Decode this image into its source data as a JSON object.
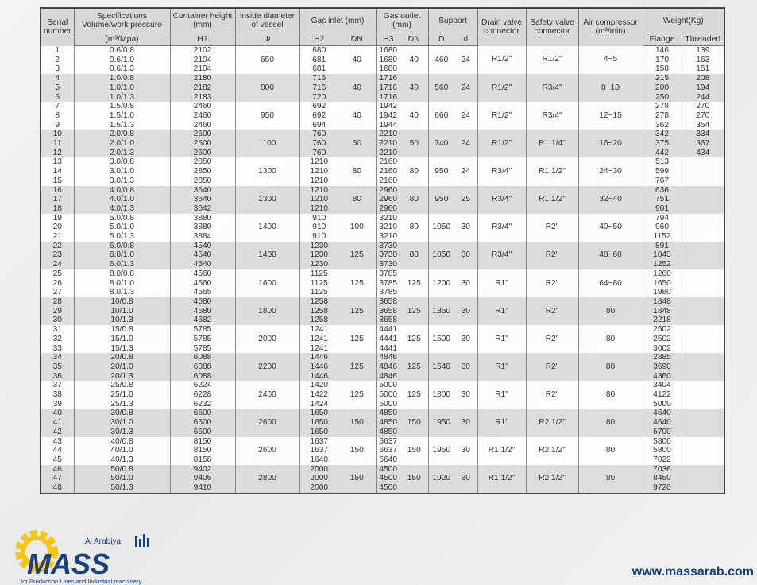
{
  "header": {
    "serial": "Serial number",
    "spec": "Specifications Volume/work pressure",
    "spec_unit": "(m³/Mpa)",
    "container_height": "Container height (mm)",
    "h1": "H1",
    "inside_diameter": "inside diameter of vessel",
    "phi": "Φ",
    "gas_inlet": "Gas inlet (mm)",
    "h2": "H2",
    "dn_in": "DN",
    "gas_outlet": "Gas outlet (mm)",
    "h3": "H3",
    "dn_out": "DN",
    "support": "Support",
    "support_D": "D",
    "support_d": "d",
    "drain": "Drain valve connector",
    "safety": "Safety valve connector",
    "air": "Air compressor (m³/min)",
    "weight": "Weight(Kg)",
    "flange": "Flange",
    "threaded": "Threaded"
  },
  "groups": [
    {
      "phi": "650",
      "dn_in": "40",
      "dn_out": "40",
      "D": "460",
      "d": "24",
      "drain": "R1/2\"",
      "safety": "R1/2\"",
      "air": "4~5",
      "rows": [
        [
          "1",
          "0.6/0.8",
          "2102",
          "680",
          "1680",
          "146",
          "139"
        ],
        [
          "2",
          "0.6/1.0",
          "2104",
          "681",
          "1680",
          "170",
          "163"
        ],
        [
          "3",
          "0.6/1.3",
          "2104",
          "681",
          "1680",
          "158",
          "151"
        ]
      ]
    },
    {
      "phi": "800",
      "dn_in": "40",
      "dn_out": "40",
      "D": "560",
      "d": "24",
      "drain": "R1/2\"",
      "safety": "R3/4\"",
      "air": "8~10",
      "rows": [
        [
          "4",
          "1.0/0.8",
          "2180",
          "716",
          "1716",
          "215",
          "208"
        ],
        [
          "5",
          "1.0/1.0",
          "2182",
          "716",
          "1716",
          "200",
          "194"
        ],
        [
          "6",
          "1.0/1.3",
          "2183",
          "720",
          "1716",
          "250",
          "244"
        ]
      ]
    },
    {
      "phi": "950",
      "dn_in": "40",
      "dn_out": "40",
      "D": "660",
      "d": "24",
      "drain": "R1/2\"",
      "safety": "R3/4\"",
      "air": "12~15",
      "rows": [
        [
          "7",
          "1.5/0.8",
          "2460",
          "692",
          "1942",
          "278",
          "270"
        ],
        [
          "8",
          "1.5/1.0",
          "2460",
          "692",
          "1942",
          "278",
          "270"
        ],
        [
          "9",
          "1.5/1.3",
          "2460",
          "694",
          "1944",
          "362",
          "354"
        ]
      ]
    },
    {
      "phi": "1100",
      "dn_in": "50",
      "dn_out": "50",
      "D": "740",
      "d": "24",
      "drain": "R1/2\"",
      "safety": "R1 1/4\"",
      "air": "16~20",
      "rows": [
        [
          "10",
          "2.0/0.8",
          "2600",
          "760",
          "2210",
          "342",
          "334"
        ],
        [
          "11",
          "2.0/1.0",
          "2600",
          "760",
          "2210",
          "375",
          "367"
        ],
        [
          "12",
          "2.0/1.3",
          "2600",
          "760",
          "2210",
          "442",
          "434"
        ]
      ]
    },
    {
      "phi": "1300",
      "dn_in": "80",
      "dn_out": "80",
      "D": "950",
      "d": "24",
      "drain": "R3/4\"",
      "safety": "R1 1/2\"",
      "air": "24~30",
      "rows": [
        [
          "13",
          "3.0/0.8",
          "2850",
          "1210",
          "2160",
          "513",
          ""
        ],
        [
          "14",
          "3.0/1.0",
          "2850",
          "1210",
          "2160",
          "599",
          ""
        ],
        [
          "15",
          "3.0/1.3",
          "2850",
          "1210",
          "2160",
          "767",
          ""
        ]
      ]
    },
    {
      "phi": "1300",
      "dn_in": "80",
      "dn_out": "80",
      "D": "950",
      "d": "25",
      "drain": "R3/4\"",
      "safety": "R1 1/2\"",
      "air": "32~40",
      "rows": [
        [
          "16",
          "4.0/0.8",
          "3640",
          "1210",
          "2960",
          "636",
          ""
        ],
        [
          "17",
          "4.0/1.0",
          "3640",
          "1210",
          "2960",
          "751",
          ""
        ],
        [
          "18",
          "4.0/1.3",
          "3642",
          "1210",
          "2960",
          "901",
          ""
        ]
      ]
    },
    {
      "phi": "1400",
      "dn_in": "100",
      "dn_out": "80",
      "D": "1050",
      "d": "30",
      "drain": "R3/4\"",
      "safety": "R2\"",
      "air": "40~50",
      "rows": [
        [
          "19",
          "5.0/0.8",
          "3880",
          "910",
          "3210",
          "794",
          ""
        ],
        [
          "20",
          "5.0/1.0",
          "3880",
          "910",
          "3210",
          "960",
          ""
        ],
        [
          "21",
          "5.0/1.3",
          "3884",
          "910",
          "3210",
          "1152",
          ""
        ]
      ]
    },
    {
      "phi": "1400",
      "dn_in": "125",
      "dn_out": "80",
      "D": "1050",
      "d": "30",
      "drain": "R3/4\"",
      "safety": "R2\"",
      "air": "48~60",
      "rows": [
        [
          "22",
          "6.0/0.8",
          "4540",
          "1230",
          "3730",
          "891",
          ""
        ],
        [
          "23",
          "6.0/1.0",
          "4540",
          "1230",
          "3730",
          "1043",
          ""
        ],
        [
          "24",
          "6.0/1.3",
          "4540",
          "1230",
          "3730",
          "1252",
          ""
        ]
      ]
    },
    {
      "phi": "1600",
      "dn_in": "125",
      "dn_out": "125",
      "D": "1200",
      "d": "30",
      "drain": "R1\"",
      "safety": "R2\"",
      "air": "64~80",
      "rows": [
        [
          "25",
          "8.0/0.8",
          "4560",
          "1125",
          "3785",
          "1260",
          ""
        ],
        [
          "26",
          "8.0/1.0",
          "4560",
          "1125",
          "3785",
          "1650",
          ""
        ],
        [
          "27",
          "8.0/1.3",
          "4565",
          "1125",
          "3785",
          "1980",
          ""
        ]
      ]
    },
    {
      "phi": "1800",
      "dn_in": "125",
      "dn_out": "125",
      "D": "1350",
      "d": "30",
      "drain": "R1\"",
      "safety": "R2\"",
      "air": "80",
      "rows": [
        [
          "28",
          "10/0.8",
          "4680",
          "1258",
          "3658",
          "1848",
          ""
        ],
        [
          "29",
          "10/1.0",
          "4680",
          "1258",
          "3658",
          "1848",
          ""
        ],
        [
          "30",
          "10/1.3",
          "4682",
          "1258",
          "3658",
          "2218",
          ""
        ]
      ]
    },
    {
      "phi": "2000",
      "dn_in": "125",
      "dn_out": "125",
      "D": "1500",
      "d": "30",
      "drain": "R1\"",
      "safety": "R2\"",
      "air": "80",
      "rows": [
        [
          "31",
          "15/0.8",
          "5785",
          "1241",
          "4441",
          "2502",
          ""
        ],
        [
          "32",
          "15/1.0",
          "5785",
          "1241",
          "4441",
          "2502",
          ""
        ],
        [
          "33",
          "15/1.3",
          "5785",
          "1241",
          "4441",
          "3002",
          ""
        ]
      ]
    },
    {
      "phi": "2200",
      "dn_in": "125",
      "dn_out": "125",
      "D": "1540",
      "d": "30",
      "drain": "R1\"",
      "safety": "R2\"",
      "air": "80",
      "rows": [
        [
          "34",
          "20/0.8",
          "6088",
          "1446",
          "4846",
          "2885",
          ""
        ],
        [
          "35",
          "20/1.0",
          "6088",
          "1446",
          "4846",
          "3590",
          ""
        ],
        [
          "36",
          "20/1.3",
          "6088",
          "1446",
          "4846",
          "4360",
          ""
        ]
      ]
    },
    {
      "phi": "2400",
      "dn_in": "125",
      "dn_out": "125",
      "D": "1800",
      "d": "30",
      "drain": "R1\"",
      "safety": "R2\"",
      "air": "80",
      "rows": [
        [
          "37",
          "25/0.8",
          "6224",
          "1420",
          "5000",
          "3404",
          ""
        ],
        [
          "38",
          "25/1.0",
          "6228",
          "1422",
          "5000",
          "4122",
          ""
        ],
        [
          "39",
          "25/1.3",
          "6232",
          "1424",
          "5000",
          "5000",
          ""
        ]
      ]
    },
    {
      "phi": "2600",
      "dn_in": "150",
      "dn_out": "150",
      "D": "1950",
      "d": "30",
      "drain": "R1\"",
      "safety": "R2 1/2\"",
      "air": "80",
      "rows": [
        [
          "40",
          "30/0.8",
          "6600",
          "1650",
          "4850",
          "4640",
          ""
        ],
        [
          "41",
          "30/1.0",
          "6600",
          "1650",
          "4850",
          "4640",
          ""
        ],
        [
          "42",
          "30/1.3",
          "6600",
          "1650",
          "4850",
          "5700",
          ""
        ]
      ]
    },
    {
      "phi": "2600",
      "dn_in": "150",
      "dn_out": "150",
      "D": "1950",
      "d": "30",
      "drain": "R1 1/2\"",
      "safety": "R2 1/2\"",
      "air": "80",
      "rows": [
        [
          "43",
          "40/0.8",
          "8150",
          "1637",
          "6637",
          "5800",
          ""
        ],
        [
          "44",
          "40/1.0",
          "8150",
          "1637",
          "6637",
          "5800",
          ""
        ],
        [
          "45",
          "40/1.3",
          "8158",
          "1640",
          "6640",
          "7022",
          ""
        ]
      ]
    },
    {
      "phi": "2800",
      "dn_in": "150",
      "dn_out": "150",
      "D": "1920",
      "d": "30",
      "drain": "R1 1/2\"",
      "safety": "R2 1/2\"",
      "air": "80",
      "rows": [
        [
          "46",
          "50/0.8",
          "9402",
          "2000",
          "4500",
          "7036",
          ""
        ],
        [
          "47",
          "50/1.0",
          "9406",
          "2000",
          "4500",
          "8450",
          ""
        ],
        [
          "48",
          "50/1.3",
          "9410",
          "2000",
          "4500",
          "9720",
          ""
        ]
      ]
    }
  ],
  "footer": {
    "logo_text": "Al Arabiya MASS",
    "logo_tagline": "for Production Lines and Industrial machinery",
    "website": "www.massarab.com",
    "brand_blue": "#1c3f7d",
    "brand_yellow": "#f5c518"
  }
}
